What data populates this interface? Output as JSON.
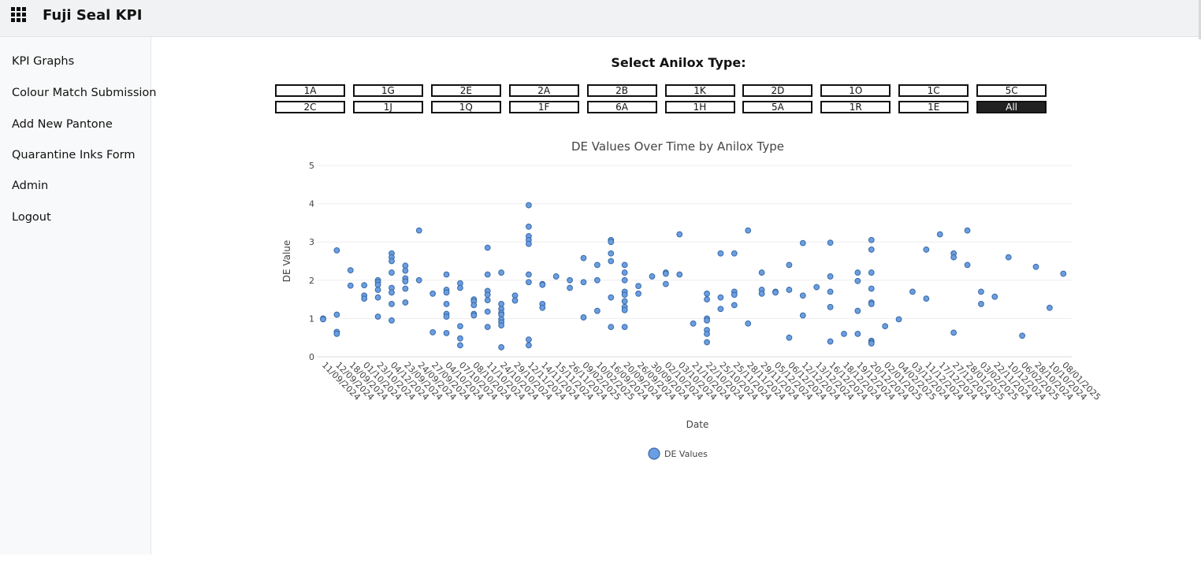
{
  "header": {
    "app_title": "Fuji Seal KPI",
    "menu_icon": "grid-menu-icon"
  },
  "sidebar": {
    "items": [
      {
        "label": "KPI Graphs"
      },
      {
        "label": "Colour Match Submission"
      },
      {
        "label": "Add New Pantone"
      },
      {
        "label": "Quarantine Inks Form"
      },
      {
        "label": "Admin"
      },
      {
        "label": "Logout"
      }
    ]
  },
  "filter": {
    "title": "Select Anilox Type:",
    "buttons": [
      "1A",
      "1G",
      "2E",
      "2A",
      "2B",
      "1K",
      "2D",
      "1O",
      "1C",
      "5C",
      "2C",
      "1J",
      "1Q",
      "1F",
      "6A",
      "1H",
      "5A",
      "1R",
      "1E",
      "All"
    ],
    "selected": "All"
  },
  "chart_data": {
    "type": "scatter",
    "title": "DE Values Over Time by Anilox Type",
    "xlabel": "Date",
    "ylabel": "DE Value",
    "ylim": [
      0,
      5
    ],
    "yticks": [
      0,
      1,
      2,
      3,
      4,
      5
    ],
    "grid": true,
    "legend_position": "bottom",
    "marker_color": "#6a9ee0",
    "marker_edge": "#3a6aa8",
    "categories": [
      "11/09/2024",
      "12/09/2024",
      "18/09/2024",
      "01/10/2024",
      "23/10/2024",
      "04/12/2024",
      "23/09/2024",
      "24/09/2024",
      "27/09/2024",
      "04/10/2024",
      "07/10/2024",
      "08/10/2024",
      "11/10/2024",
      "24/10/2024",
      "29/10/2024",
      "12/11/2024",
      "14/11/2024",
      "15/11/2024",
      "26/11/2024",
      "09/02/2025",
      "10/02/2025",
      "16/09/2024",
      "20/09/2024",
      "26/09/2024",
      "30/09/2024",
      "02/10/2024",
      "03/10/2024",
      "21/10/2024",
      "22/10/2024",
      "25/10/2024",
      "25/11/2024",
      "28/11/2024",
      "29/11/2024",
      "05/12/2024",
      "06/12/2024",
      "12/12/2024",
      "13/12/2024",
      "16/12/2024",
      "18/12/2024",
      "19/12/2024",
      "20/12/2024",
      "02/01/2025",
      "04/02/2025",
      "03/12/2024",
      "11/12/2024",
      "17/12/2024",
      "27/12/2024",
      "28/01/2025",
      "03/02/2025",
      "22/11/2024",
      "10/12/2024",
      "06/02/2025",
      "28/10/2024",
      "10/10/2024",
      "08/01/2025"
    ],
    "series": [
      {
        "name": "DE Values",
        "points": [
          [
            "11/09/2024",
            1.0
          ],
          [
            "11/09/2024",
            0.98
          ],
          [
            "12/09/2024",
            2.78
          ],
          [
            "12/09/2024",
            1.1
          ],
          [
            "12/09/2024",
            0.65
          ],
          [
            "12/09/2024",
            0.6
          ],
          [
            "18/09/2024",
            2.26
          ],
          [
            "18/09/2024",
            1.86
          ],
          [
            "01/10/2024",
            1.87
          ],
          [
            "01/10/2024",
            1.6
          ],
          [
            "01/10/2024",
            1.52
          ],
          [
            "23/10/2024",
            2.0
          ],
          [
            "23/10/2024",
            1.95
          ],
          [
            "23/10/2024",
            1.88
          ],
          [
            "23/10/2024",
            1.75
          ],
          [
            "23/10/2024",
            1.55
          ],
          [
            "23/10/2024",
            1.05
          ],
          [
            "04/12/2024",
            2.7
          ],
          [
            "04/12/2024",
            2.6
          ],
          [
            "04/12/2024",
            2.5
          ],
          [
            "04/12/2024",
            2.2
          ],
          [
            "04/12/2024",
            1.8
          ],
          [
            "04/12/2024",
            1.68
          ],
          [
            "04/12/2024",
            1.38
          ],
          [
            "04/12/2024",
            0.95
          ],
          [
            "23/09/2024",
            2.38
          ],
          [
            "23/09/2024",
            2.25
          ],
          [
            "23/09/2024",
            2.05
          ],
          [
            "23/09/2024",
            1.97
          ],
          [
            "23/09/2024",
            1.78
          ],
          [
            "23/09/2024",
            1.42
          ],
          [
            "24/09/2024",
            3.3
          ],
          [
            "24/09/2024",
            2.0
          ],
          [
            "27/09/2024",
            1.65
          ],
          [
            "27/09/2024",
            0.64
          ],
          [
            "04/10/2024",
            2.15
          ],
          [
            "04/10/2024",
            1.75
          ],
          [
            "04/10/2024",
            1.68
          ],
          [
            "04/10/2024",
            1.38
          ],
          [
            "04/10/2024",
            1.12
          ],
          [
            "04/10/2024",
            1.05
          ],
          [
            "04/10/2024",
            0.62
          ],
          [
            "07/10/2024",
            1.92
          ],
          [
            "07/10/2024",
            1.8
          ],
          [
            "07/10/2024",
            0.8
          ],
          [
            "07/10/2024",
            0.48
          ],
          [
            "07/10/2024",
            0.3
          ],
          [
            "08/10/2024",
            1.5
          ],
          [
            "08/10/2024",
            1.45
          ],
          [
            "08/10/2024",
            1.35
          ],
          [
            "08/10/2024",
            1.12
          ],
          [
            "08/10/2024",
            1.08
          ],
          [
            "11/10/2024",
            2.85
          ],
          [
            "11/10/2024",
            2.15
          ],
          [
            "11/10/2024",
            1.72
          ],
          [
            "11/10/2024",
            1.62
          ],
          [
            "11/10/2024",
            1.48
          ],
          [
            "11/10/2024",
            1.18
          ],
          [
            "11/10/2024",
            0.78
          ],
          [
            "24/10/2024",
            2.2
          ],
          [
            "24/10/2024",
            1.38
          ],
          [
            "24/10/2024",
            1.25
          ],
          [
            "24/10/2024",
            1.15
          ],
          [
            "24/10/2024",
            1.1
          ],
          [
            "24/10/2024",
            0.98
          ],
          [
            "24/10/2024",
            0.9
          ],
          [
            "24/10/2024",
            0.82
          ],
          [
            "24/10/2024",
            0.25
          ],
          [
            "29/10/2024",
            1.6
          ],
          [
            "29/10/2024",
            1.47
          ],
          [
            "12/11/2024",
            3.96
          ],
          [
            "12/11/2024",
            3.4
          ],
          [
            "12/11/2024",
            3.15
          ],
          [
            "12/11/2024",
            3.05
          ],
          [
            "12/11/2024",
            2.95
          ],
          [
            "12/11/2024",
            2.15
          ],
          [
            "12/11/2024",
            1.95
          ],
          [
            "12/11/2024",
            0.45
          ],
          [
            "12/11/2024",
            0.3
          ],
          [
            "14/11/2024",
            1.9
          ],
          [
            "14/11/2024",
            1.88
          ],
          [
            "14/11/2024",
            1.38
          ],
          [
            "14/11/2024",
            1.28
          ],
          [
            "15/11/2024",
            2.1
          ],
          [
            "26/11/2024",
            2.0
          ],
          [
            "26/11/2024",
            1.8
          ],
          [
            "09/02/2025",
            2.58
          ],
          [
            "09/02/2025",
            1.95
          ],
          [
            "09/02/2025",
            1.03
          ],
          [
            "10/02/2025",
            2.4
          ],
          [
            "10/02/2025",
            2.0
          ],
          [
            "10/02/2025",
            1.2
          ],
          [
            "16/09/2024",
            3.05
          ],
          [
            "16/09/2024",
            3.0
          ],
          [
            "16/09/2024",
            2.7
          ],
          [
            "16/09/2024",
            2.5
          ],
          [
            "16/09/2024",
            1.55
          ],
          [
            "16/09/2024",
            0.78
          ],
          [
            "20/09/2024",
            2.4
          ],
          [
            "20/09/2024",
            2.2
          ],
          [
            "20/09/2024",
            2.0
          ],
          [
            "20/09/2024",
            1.7
          ],
          [
            "20/09/2024",
            1.62
          ],
          [
            "20/09/2024",
            1.45
          ],
          [
            "20/09/2024",
            1.3
          ],
          [
            "20/09/2024",
            1.22
          ],
          [
            "20/09/2024",
            0.78
          ],
          [
            "26/09/2024",
            1.85
          ],
          [
            "26/09/2024",
            1.65
          ],
          [
            "30/09/2024",
            2.1
          ],
          [
            "02/10/2024",
            2.2
          ],
          [
            "02/10/2024",
            2.17
          ],
          [
            "02/10/2024",
            1.9
          ],
          [
            "03/10/2024",
            3.2
          ],
          [
            "03/10/2024",
            2.15
          ],
          [
            "21/10/2024",
            0.87
          ],
          [
            "22/10/2024",
            1.65
          ],
          [
            "22/10/2024",
            1.5
          ],
          [
            "22/10/2024",
            1.0
          ],
          [
            "22/10/2024",
            0.95
          ],
          [
            "22/10/2024",
            0.7
          ],
          [
            "22/10/2024",
            0.6
          ],
          [
            "22/10/2024",
            0.38
          ],
          [
            "25/10/2024",
            2.7
          ],
          [
            "25/10/2024",
            1.55
          ],
          [
            "25/10/2024",
            1.25
          ],
          [
            "25/11/2024",
            2.7
          ],
          [
            "25/11/2024",
            1.7
          ],
          [
            "25/11/2024",
            1.62
          ],
          [
            "25/11/2024",
            1.35
          ],
          [
            "28/11/2024",
            3.3
          ],
          [
            "28/11/2024",
            0.87
          ],
          [
            "29/11/2024",
            2.2
          ],
          [
            "29/11/2024",
            1.75
          ],
          [
            "29/11/2024",
            1.65
          ],
          [
            "05/12/2024",
            1.7
          ],
          [
            "05/12/2024",
            1.68
          ],
          [
            "06/12/2024",
            2.4
          ],
          [
            "06/12/2024",
            1.75
          ],
          [
            "06/12/2024",
            0.5
          ],
          [
            "12/12/2024",
            2.97
          ],
          [
            "12/12/2024",
            1.6
          ],
          [
            "12/12/2024",
            1.08
          ],
          [
            "13/12/2024",
            1.82
          ],
          [
            "16/12/2024",
            2.98
          ],
          [
            "16/12/2024",
            2.1
          ],
          [
            "16/12/2024",
            1.7
          ],
          [
            "16/12/2024",
            1.3
          ],
          [
            "16/12/2024",
            0.4
          ],
          [
            "18/12/2024",
            0.6
          ],
          [
            "19/12/2024",
            2.2
          ],
          [
            "19/12/2024",
            1.98
          ],
          [
            "19/12/2024",
            1.2
          ],
          [
            "19/12/2024",
            0.6
          ],
          [
            "20/12/2024",
            3.05
          ],
          [
            "20/12/2024",
            2.8
          ],
          [
            "20/12/2024",
            2.2
          ],
          [
            "20/12/2024",
            1.78
          ],
          [
            "20/12/2024",
            1.42
          ],
          [
            "20/12/2024",
            1.38
          ],
          [
            "20/12/2024",
            0.42
          ],
          [
            "20/12/2024",
            0.38
          ],
          [
            "20/12/2024",
            0.35
          ],
          [
            "02/01/2025",
            0.8
          ],
          [
            "04/02/2025",
            0.98
          ],
          [
            "03/12/2024",
            1.7
          ],
          [
            "11/12/2024",
            2.8
          ],
          [
            "11/12/2024",
            1.52
          ],
          [
            "17/12/2024",
            3.2
          ],
          [
            "27/12/2024",
            2.7
          ],
          [
            "27/12/2024",
            2.6
          ],
          [
            "27/12/2024",
            0.63
          ],
          [
            "28/01/2025",
            3.3
          ],
          [
            "28/01/2025",
            2.4
          ],
          [
            "03/02/2025",
            1.7
          ],
          [
            "03/02/2025",
            1.38
          ],
          [
            "22/11/2024",
            1.57
          ],
          [
            "10/12/2024",
            2.6
          ],
          [
            "06/02/2025",
            0.55
          ],
          [
            "28/10/2024",
            2.35
          ],
          [
            "10/10/2024",
            1.28
          ],
          [
            "08/01/2025",
            2.17
          ]
        ]
      }
    ],
    "legend": [
      "DE Values"
    ]
  }
}
